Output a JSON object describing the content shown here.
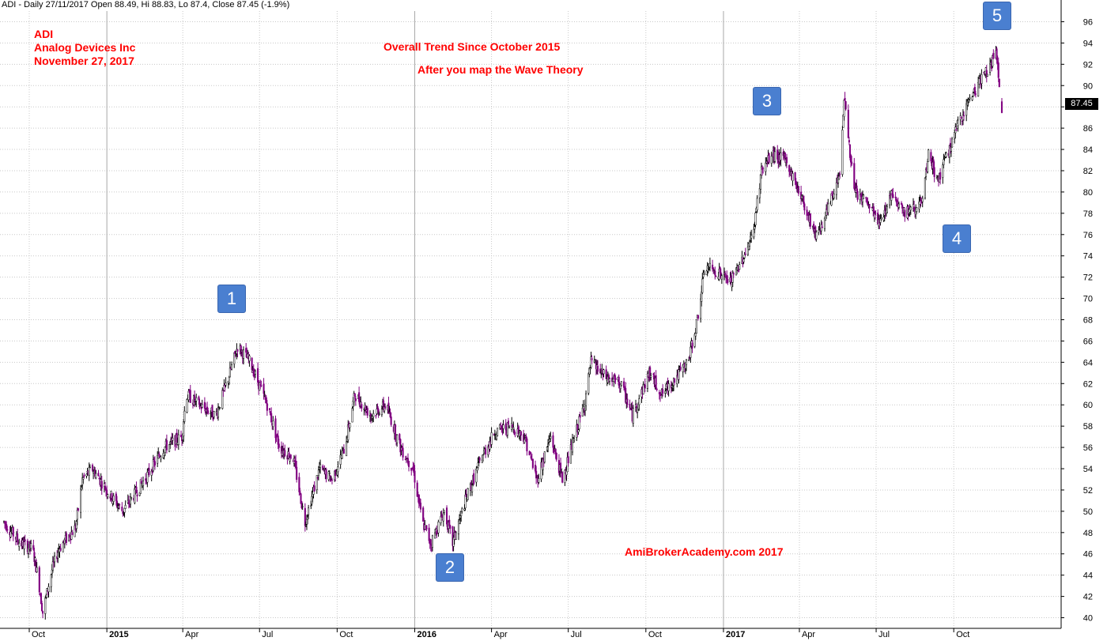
{
  "header": {
    "text": "ADI - Daily 27/11/2017 Open 88.49, Hi 88.83, Lo 87.4, Close 87.45 (-1.9%)"
  },
  "annotations": {
    "ticker": "ADI",
    "company": "Analog Devices Inc",
    "date": "November 27, 2017",
    "trend": "Overall Trend Since October 2015",
    "wave": "After you map the Wave Theory",
    "watermark": "AmiBrokerAcademy.com  2017"
  },
  "wave_labels": [
    "1",
    "2",
    "3",
    "4",
    "5"
  ],
  "close_label": "87.45",
  "colors": {
    "up_candle": "#000000",
    "down_candle": "#800080",
    "annotation_text": "#ff0000",
    "wave_box": "#4a7fd0",
    "grid": "#c8c8c8"
  },
  "chart_data": {
    "type": "candlestick",
    "interval": "daily",
    "ylim": [
      39,
      97
    ],
    "y_ticks": [
      40,
      42,
      44,
      46,
      48,
      50,
      52,
      54,
      56,
      58,
      60,
      62,
      64,
      66,
      68,
      70,
      72,
      74,
      76,
      78,
      80,
      82,
      84,
      86,
      88,
      90,
      92,
      94,
      96
    ],
    "x_ticks": [
      "Oct",
      "2015",
      "Apr",
      "Jul",
      "Oct",
      "2016",
      "Apr",
      "Jul",
      "Oct",
      "2017",
      "Apr",
      "Jul",
      "Oct"
    ],
    "last_bar": {
      "date": "27/11/2017",
      "open": 88.49,
      "high": 88.83,
      "low": 87.4,
      "close": 87.45,
      "change_pct": -1.9
    },
    "price_path": [
      [
        "2014-09-01",
        49.0
      ],
      [
        "2014-09-20",
        47.0
      ],
      [
        "2014-10-05",
        46.5
      ],
      [
        "2014-10-12",
        43.5
      ],
      [
        "2014-10-17",
        40.5
      ],
      [
        "2014-10-28",
        44.5
      ],
      [
        "2014-11-05",
        46.5
      ],
      [
        "2014-11-25",
        48.5
      ],
      [
        "2014-12-03",
        53.0
      ],
      [
        "2014-12-15",
        54.0
      ],
      [
        "2015-01-05",
        51.5
      ],
      [
        "2015-01-20",
        50.0
      ],
      [
        "2015-02-15",
        53.0
      ],
      [
        "2015-03-10",
        56.0
      ],
      [
        "2015-03-31",
        57.0
      ],
      [
        "2015-04-05",
        61.0
      ],
      [
        "2015-04-20",
        60.0
      ],
      [
        "2015-05-10",
        59.0
      ],
      [
        "2015-05-25",
        62.5
      ],
      [
        "2015-06-05",
        65.5
      ],
      [
        "2015-06-20",
        64.0
      ],
      [
        "2015-07-10",
        60.0
      ],
      [
        "2015-07-25",
        56.0
      ],
      [
        "2015-08-10",
        55.0
      ],
      [
        "2015-08-24",
        49.0
      ],
      [
        "2015-09-10",
        54.0
      ],
      [
        "2015-09-25",
        53.0
      ],
      [
        "2015-10-10",
        56.0
      ],
      [
        "2015-10-22",
        61.0
      ],
      [
        "2015-11-10",
        59.0
      ],
      [
        "2015-11-28",
        60.0
      ],
      [
        "2015-12-15",
        56.0
      ],
      [
        "2015-12-30",
        54.0
      ],
      [
        "2016-01-10",
        49.0
      ],
      [
        "2016-01-20",
        47.0
      ],
      [
        "2016-02-05",
        50.0
      ],
      [
        "2016-02-15",
        47.0
      ],
      [
        "2016-03-01",
        51.0
      ],
      [
        "2016-03-20",
        55.0
      ],
      [
        "2016-04-05",
        57.5
      ],
      [
        "2016-04-25",
        58.0
      ],
      [
        "2016-05-10",
        57.0
      ],
      [
        "2016-05-25",
        53.0
      ],
      [
        "2016-06-10",
        57.0
      ],
      [
        "2016-06-24",
        53.0
      ],
      [
        "2016-07-05",
        56.0
      ],
      [
        "2016-07-20",
        60.0
      ],
      [
        "2016-07-28",
        64.0
      ],
      [
        "2016-08-15",
        62.5
      ],
      [
        "2016-09-01",
        62.0
      ],
      [
        "2016-09-15",
        59.0
      ],
      [
        "2016-10-05",
        63.0
      ],
      [
        "2016-10-20",
        61.0
      ],
      [
        "2016-11-05",
        62.5
      ],
      [
        "2016-11-20",
        64.0
      ],
      [
        "2016-12-01",
        68.0
      ],
      [
        "2016-12-10",
        73.0
      ],
      [
        "2016-12-25",
        72.5
      ],
      [
        "2017-01-10",
        71.5
      ],
      [
        "2017-01-25",
        74.0
      ],
      [
        "2017-02-05",
        76.0
      ],
      [
        "2017-02-15",
        82.0
      ],
      [
        "2017-02-28",
        83.5
      ],
      [
        "2017-03-15",
        83.0
      ],
      [
        "2017-04-01",
        80.0
      ],
      [
        "2017-04-20",
        76.0
      ],
      [
        "2017-05-01",
        77.5
      ],
      [
        "2017-05-12",
        80.0
      ],
      [
        "2017-05-20",
        82.5
      ],
      [
        "2017-05-24",
        89.0
      ],
      [
        "2017-06-05",
        80.0
      ],
      [
        "2017-06-20",
        79.0
      ],
      [
        "2017-07-05",
        77.0
      ],
      [
        "2017-07-20",
        80.0
      ],
      [
        "2017-08-05",
        78.0
      ],
      [
        "2017-08-25",
        79.0
      ],
      [
        "2017-09-01",
        83.5
      ],
      [
        "2017-09-12",
        81.0
      ],
      [
        "2017-09-30",
        85.0
      ],
      [
        "2017-10-15",
        88.0
      ],
      [
        "2017-11-01",
        90.5
      ],
      [
        "2017-11-15",
        92.0
      ],
      [
        "2017-11-20",
        93.5
      ],
      [
        "2017-11-27",
        87.45
      ]
    ]
  }
}
